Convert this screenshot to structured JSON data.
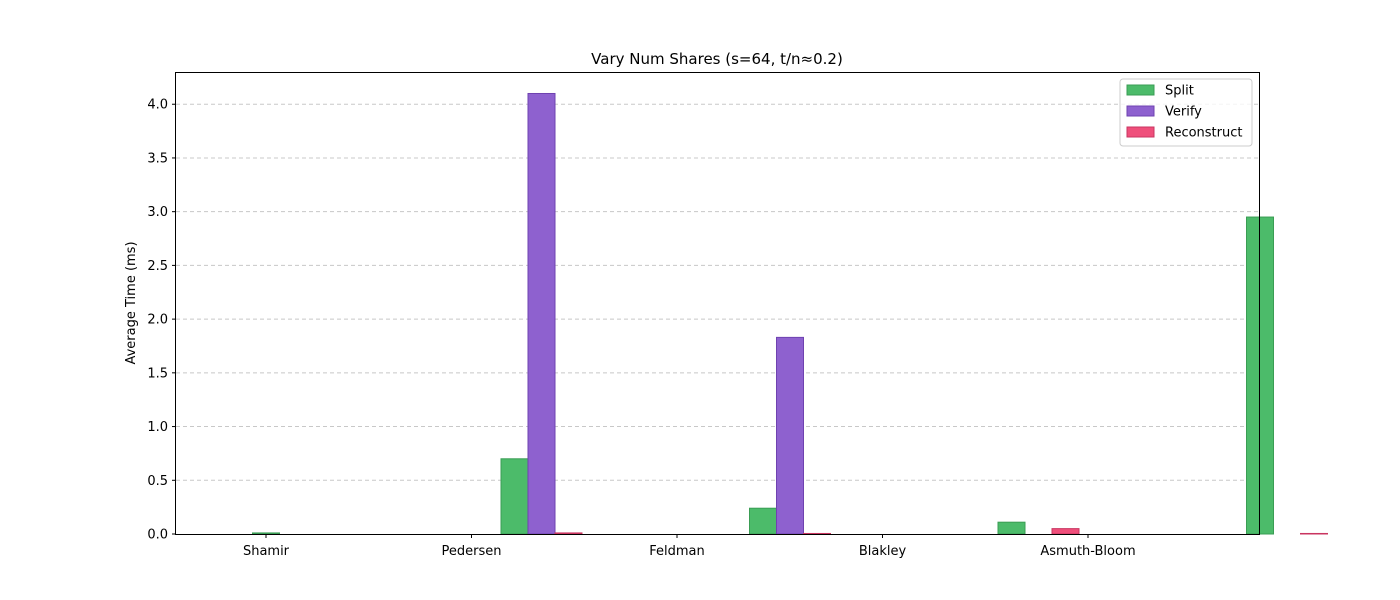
{
  "chart_data": {
    "type": "bar",
    "title": "Vary Num Shares (s=64, t/n≈0.2)",
    "xlabel": "",
    "ylabel": "Average Time (ms)",
    "categories": [
      "Shamir",
      "Pedersen",
      "Feldman",
      "Blakley",
      "Asmuth-Bloom"
    ],
    "ylim": [
      0,
      4.3
    ],
    "yticks": [
      "0.0",
      "0.5",
      "1.0",
      "1.5",
      "2.0",
      "2.5",
      "3.0",
      "3.5",
      "4.0"
    ],
    "grid": "y, dashed",
    "legend_position": "top-right",
    "series": [
      {
        "name": "Split",
        "color": "#4cbb6a",
        "edge": "#3a9d54",
        "values": [
          0.01,
          0.7,
          0.24,
          0.11,
          2.95
        ]
      },
      {
        "name": "Verify",
        "color": "#8e61cf",
        "edge": "#6f42b0",
        "values": [
          0.0,
          4.1,
          1.83,
          0.0,
          0.0
        ]
      },
      {
        "name": "Reconstruct",
        "color": "#ef4f7b",
        "edge": "#c93560",
        "values": [
          0.0,
          0.01,
          0.005,
          0.05,
          0.005
        ]
      }
    ]
  }
}
